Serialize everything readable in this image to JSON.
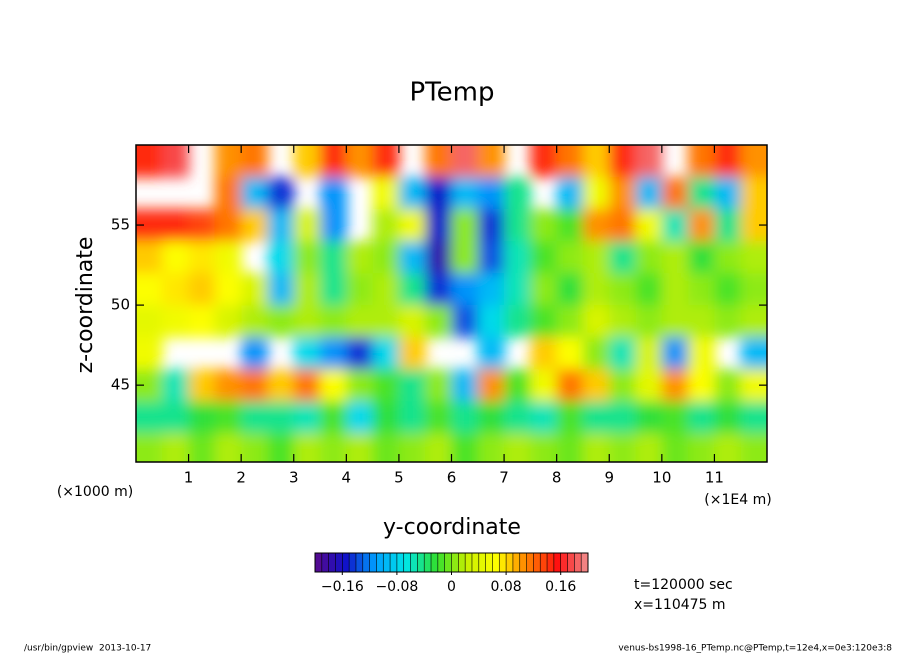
{
  "chart_data": {
    "type": "contour",
    "title": "PTemp",
    "x_label": "y-coordinate",
    "y_label": "z-coordinate",
    "x_unit_left": "(×1000 m)",
    "x_unit_right": "(×1E4 m)",
    "xlim": [
      0,
      12
    ],
    "xticks": [
      1,
      2,
      3,
      4,
      5,
      6,
      7,
      8,
      9,
      10,
      11
    ],
    "ylim": [
      40.2,
      60
    ],
    "yticks": [
      45,
      50,
      55
    ],
    "x": [
      0.25,
      0.75,
      1.25,
      1.75,
      2.25,
      2.75,
      3.25,
      3.75,
      4.25,
      4.75,
      5.25,
      5.75,
      6.25,
      6.75,
      7.25,
      7.75,
      8.25,
      8.75,
      9.25,
      9.75,
      10.25,
      10.75,
      11.25,
      11.75
    ],
    "y": [
      59,
      57,
      55,
      53,
      51,
      49,
      47,
      45,
      43,
      41
    ],
    "z": [
      [
        0.15,
        0.17,
        null,
        0.1,
        0.12,
        null,
        0.08,
        0.14,
        0.1,
        0.15,
        null,
        0.12,
        0.18,
        0.1,
        null,
        0.15,
        0.12,
        0.08,
        0.15,
        0.18,
        null,
        0.12,
        0.15,
        0.1
      ],
      [
        null,
        null,
        null,
        0.12,
        -0.1,
        -0.15,
        null,
        -0.12,
        null,
        0.05,
        -0.1,
        -0.16,
        -0.1,
        -0.12,
        -0.05,
        null,
        -0.1,
        0.05,
        0.1,
        -0.1,
        0.12,
        -0.05,
        -0.1,
        0.08
      ],
      [
        0.15,
        0.14,
        0.13,
        0.12,
        0.08,
        -0.1,
        0.03,
        -0.12,
        null,
        0.02,
        0.05,
        -0.16,
        0.0,
        -0.15,
        -0.05,
        0.0,
        -0.02,
        0.1,
        0.12,
        0.05,
        -0.06,
        0.1,
        -0.05,
        0.08
      ],
      [
        0.08,
        0.06,
        0.07,
        0.05,
        null,
        -0.08,
        0.0,
        -0.05,
        0.02,
        0.0,
        -0.1,
        -0.18,
        0.0,
        -0.14,
        -0.06,
        -0.02,
        0.0,
        0.02,
        -0.04,
        0.0,
        0.02,
        -0.03,
        0.0,
        0.01
      ],
      [
        0.06,
        0.07,
        0.08,
        0.06,
        0.03,
        -0.1,
        0.01,
        -0.04,
        0.0,
        0.02,
        -0.05,
        -0.15,
        -0.12,
        -0.1,
        -0.06,
        0.0,
        -0.03,
        0.02,
        0.0,
        -0.02,
        0.01,
        0.0,
        -0.02,
        0.0
      ],
      [
        0.04,
        0.05,
        0.06,
        0.03,
        0.02,
        0.0,
        0.02,
        0.0,
        0.01,
        0.02,
        0.03,
        0.0,
        -0.14,
        -0.08,
        -0.05,
        -0.02,
        0.0,
        0.03,
        0.02,
        0.0,
        0.01,
        0.02,
        0.0,
        0.01
      ],
      [
        0.05,
        null,
        null,
        null,
        -0.12,
        null,
        -0.08,
        -0.12,
        -0.15,
        -0.08,
        0.08,
        null,
        null,
        -0.1,
        null,
        0.08,
        0.06,
        0.0,
        -0.06,
        0.03,
        -0.12,
        0.05,
        null,
        -0.1
      ],
      [
        0.0,
        -0.06,
        0.08,
        0.1,
        0.12,
        0.08,
        0.12,
        0.06,
        0.0,
        -0.02,
        -0.05,
        0.0,
        -0.1,
        0.1,
        -0.02,
        0.05,
        0.12,
        0.08,
        0.0,
        0.04,
        0.1,
        0.06,
        0.0,
        0.05
      ],
      [
        -0.04,
        -0.05,
        -0.03,
        -0.02,
        -0.05,
        -0.04,
        -0.06,
        -0.02,
        -0.08,
        -0.03,
        -0.04,
        -0.02,
        -0.05,
        -0.03,
        -0.04,
        -0.06,
        -0.02,
        -0.04,
        -0.05,
        -0.03,
        -0.02,
        -0.04,
        -0.03,
        -0.05
      ],
      [
        0.0,
        0.02,
        -0.01,
        0.01,
        0.0,
        -0.02,
        0.01,
        0.0,
        0.02,
        -0.01,
        0.0,
        0.01,
        -0.02,
        0.0,
        0.01,
        0.0,
        -0.01,
        0.02,
        0.0,
        0.01,
        -0.01,
        0.0,
        0.02,
        0.0
      ]
    ],
    "clim": [
      -0.2,
      0.2
    ],
    "ncolors": 40,
    "colormap": [
      "#5a0a8c",
      "#1010c8",
      "#00a0ff",
      "#00e6e6",
      "#30e030",
      "#c8f000",
      "#ffff00",
      "#ff8000",
      "#ff1010",
      "#f09090"
    ],
    "cticks": [
      {
        "value": -0.16,
        "label": "−0.16"
      },
      {
        "value": -0.08,
        "label": "−0.08"
      },
      0,
      0.08,
      0.16
    ],
    "annotations": [
      "t=120000 sec",
      "x=110475 m"
    ],
    "footer_left": "/usr/bin/gpview  2013-10-17",
    "footer_right": "venus-bs1998-16_PTemp.nc@PTemp,t=12e4,x=0e3:120e3:8"
  }
}
